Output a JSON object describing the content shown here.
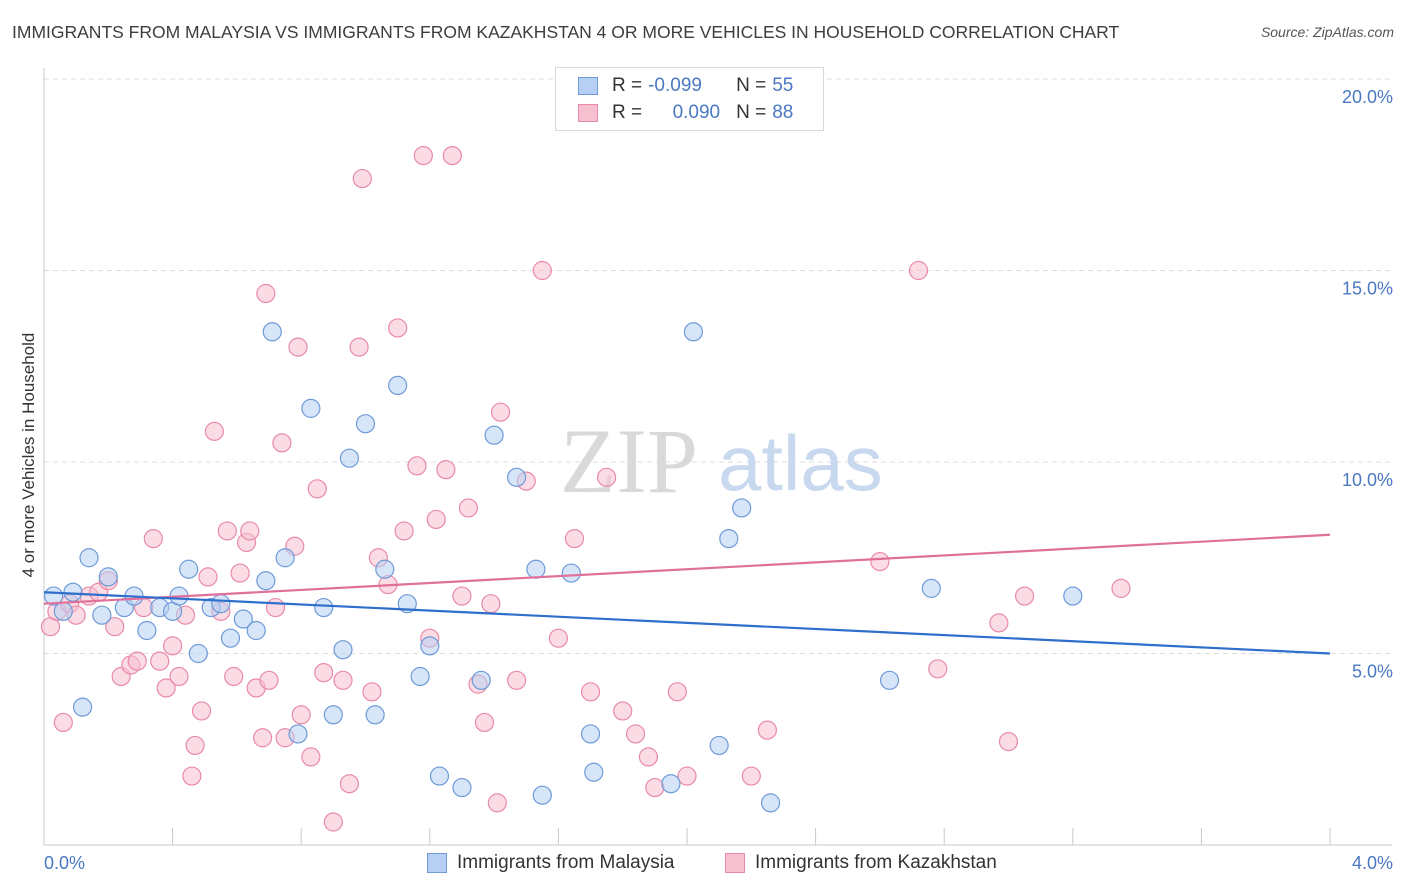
{
  "title": "IMMIGRANTS FROM MALAYSIA VS IMMIGRANTS FROM KAZAKHSTAN 4 OR MORE VEHICLES IN HOUSEHOLD CORRELATION CHART",
  "source": "Source: ZipAtlas.com",
  "watermark": {
    "zip": "ZIP",
    "atlas": "atlas"
  },
  "legend": {
    "r_label": "R =",
    "n_label": "N =",
    "malaysia": {
      "r": "-0.099",
      "n": "55"
    },
    "kazakhstan": {
      "r": "0.090",
      "n": "88"
    }
  },
  "colors": {
    "malaysia_fill": "#b7cff2",
    "malaysia_stroke": "#6e9ad8",
    "malaysia_line": "#2f6fcc",
    "kazakhstan_fill": "#f7c0d0",
    "kazakhstan_stroke": "#e88aa8",
    "kazakhstan_line": "#e0709a",
    "tick": "#4a78c2",
    "grid": "#dcdcdc"
  },
  "chart_data": {
    "type": "scatter",
    "title": "IMMIGRANTS FROM MALAYSIA VS IMMIGRANTS FROM KAZAKHSTAN 4 OR MORE VEHICLES IN HOUSEHOLD CORRELATION CHART",
    "xlabel": "",
    "ylabel": "4 or more Vehicles in Household",
    "xlim": [
      0,
      4
    ],
    "ylim": [
      0,
      20
    ],
    "x_ticks": [
      "0.0%",
      "4.0%"
    ],
    "y_ticks": [
      {
        "value": 5,
        "label": "5.0%"
      },
      {
        "value": 10,
        "label": "10.0%"
      },
      {
        "value": 15,
        "label": "15.0%"
      },
      {
        "value": 20,
        "label": "20.0%"
      }
    ],
    "legend_position": "top-center",
    "grid": "horizontal-dashed",
    "series": [
      {
        "name": "Immigrants from Malaysia",
        "trend": [
          [
            0,
            6.6
          ],
          [
            4,
            5.0
          ]
        ],
        "points": [
          [
            0.03,
            6.5
          ],
          [
            0.06,
            6.1
          ],
          [
            0.09,
            6.6
          ],
          [
            0.14,
            7.5
          ],
          [
            0.18,
            6.0
          ],
          [
            0.12,
            3.6
          ],
          [
            0.2,
            7.0
          ],
          [
            0.25,
            6.2
          ],
          [
            0.28,
            6.5
          ],
          [
            0.32,
            5.6
          ],
          [
            0.36,
            6.2
          ],
          [
            0.4,
            6.1
          ],
          [
            0.42,
            6.5
          ],
          [
            0.45,
            7.2
          ],
          [
            0.48,
            5.0
          ],
          [
            0.52,
            6.2
          ],
          [
            0.55,
            6.3
          ],
          [
            0.58,
            5.4
          ],
          [
            0.62,
            5.9
          ],
          [
            0.66,
            5.6
          ],
          [
            0.69,
            6.9
          ],
          [
            0.71,
            13.4
          ],
          [
            0.75,
            7.5
          ],
          [
            0.79,
            2.9
          ],
          [
            0.83,
            11.4
          ],
          [
            0.87,
            6.2
          ],
          [
            0.9,
            3.4
          ],
          [
            0.93,
            5.1
          ],
          [
            0.95,
            10.1
          ],
          [
            1.0,
            11.0
          ],
          [
            1.03,
            3.4
          ],
          [
            1.06,
            7.2
          ],
          [
            1.1,
            12.0
          ],
          [
            1.13,
            6.3
          ],
          [
            1.17,
            4.4
          ],
          [
            1.2,
            5.2
          ],
          [
            1.23,
            1.8
          ],
          [
            1.3,
            1.5
          ],
          [
            1.36,
            4.3
          ],
          [
            1.4,
            10.7
          ],
          [
            1.47,
            9.6
          ],
          [
            1.53,
            7.2
          ],
          [
            1.55,
            1.3
          ],
          [
            1.64,
            7.1
          ],
          [
            1.7,
            2.9
          ],
          [
            1.71,
            1.9
          ],
          [
            1.95,
            1.6
          ],
          [
            2.02,
            13.4
          ],
          [
            2.1,
            2.6
          ],
          [
            2.13,
            8.0
          ],
          [
            2.17,
            8.8
          ],
          [
            2.26,
            1.1
          ],
          [
            2.63,
            4.3
          ],
          [
            2.76,
            6.7
          ],
          [
            3.2,
            6.5
          ]
        ]
      },
      {
        "name": "Immigrants from Kazakhstan",
        "trend": [
          [
            0,
            6.3
          ],
          [
            4,
            8.1
          ]
        ],
        "points": [
          [
            0.02,
            5.7
          ],
          [
            0.04,
            6.1
          ],
          [
            0.06,
            3.2
          ],
          [
            0.08,
            6.3
          ],
          [
            0.1,
            6.0
          ],
          [
            0.14,
            6.5
          ],
          [
            0.17,
            6.6
          ],
          [
            0.2,
            6.9
          ],
          [
            0.22,
            5.7
          ],
          [
            0.24,
            4.4
          ],
          [
            0.27,
            4.7
          ],
          [
            0.29,
            4.8
          ],
          [
            0.31,
            6.2
          ],
          [
            0.34,
            8.0
          ],
          [
            0.36,
            4.8
          ],
          [
            0.38,
            4.1
          ],
          [
            0.4,
            5.2
          ],
          [
            0.42,
            4.4
          ],
          [
            0.44,
            6.0
          ],
          [
            0.46,
            1.8
          ],
          [
            0.47,
            2.6
          ],
          [
            0.49,
            3.5
          ],
          [
            0.51,
            7.0
          ],
          [
            0.53,
            10.8
          ],
          [
            0.55,
            6.1
          ],
          [
            0.57,
            8.2
          ],
          [
            0.59,
            4.4
          ],
          [
            0.61,
            7.1
          ],
          [
            0.63,
            7.9
          ],
          [
            0.64,
            8.2
          ],
          [
            0.66,
            4.1
          ],
          [
            0.68,
            2.8
          ],
          [
            0.69,
            14.4
          ],
          [
            0.7,
            4.3
          ],
          [
            0.72,
            6.2
          ],
          [
            0.74,
            10.5
          ],
          [
            0.75,
            2.8
          ],
          [
            0.78,
            7.8
          ],
          [
            0.79,
            13.0
          ],
          [
            0.8,
            3.4
          ],
          [
            0.83,
            2.3
          ],
          [
            0.85,
            9.3
          ],
          [
            0.87,
            4.5
          ],
          [
            0.9,
            0.6
          ],
          [
            0.93,
            4.3
          ],
          [
            0.95,
            1.6
          ],
          [
            0.98,
            13.0
          ],
          [
            0.99,
            17.4
          ],
          [
            1.02,
            4.0
          ],
          [
            1.04,
            7.5
          ],
          [
            1.07,
            6.8
          ],
          [
            1.1,
            13.5
          ],
          [
            1.12,
            8.2
          ],
          [
            1.16,
            9.9
          ],
          [
            1.18,
            18.0
          ],
          [
            1.2,
            5.4
          ],
          [
            1.22,
            8.5
          ],
          [
            1.25,
            9.8
          ],
          [
            1.27,
            18.0
          ],
          [
            1.3,
            6.5
          ],
          [
            1.32,
            8.8
          ],
          [
            1.35,
            4.2
          ],
          [
            1.37,
            3.2
          ],
          [
            1.39,
            6.3
          ],
          [
            1.41,
            1.1
          ],
          [
            1.42,
            11.3
          ],
          [
            1.47,
            4.3
          ],
          [
            1.5,
            9.5
          ],
          [
            1.55,
            15.0
          ],
          [
            1.6,
            5.4
          ],
          [
            1.65,
            8.0
          ],
          [
            1.7,
            4.0
          ],
          [
            1.75,
            9.6
          ],
          [
            1.8,
            3.5
          ],
          [
            1.84,
            2.9
          ],
          [
            1.88,
            2.3
          ],
          [
            1.9,
            1.5
          ],
          [
            1.97,
            4.0
          ],
          [
            2.0,
            1.8
          ],
          [
            2.2,
            1.8
          ],
          [
            2.25,
            3.0
          ],
          [
            2.6,
            7.4
          ],
          [
            2.72,
            15.0
          ],
          [
            2.78,
            4.6
          ],
          [
            2.97,
            5.8
          ],
          [
            3.0,
            2.7
          ],
          [
            3.35,
            6.7
          ],
          [
            3.05,
            6.5
          ]
        ]
      }
    ]
  },
  "bottom_legend": {
    "malaysia": "Immigrants from Malaysia",
    "kazakhstan": "Immigrants from Kazakhstan"
  }
}
